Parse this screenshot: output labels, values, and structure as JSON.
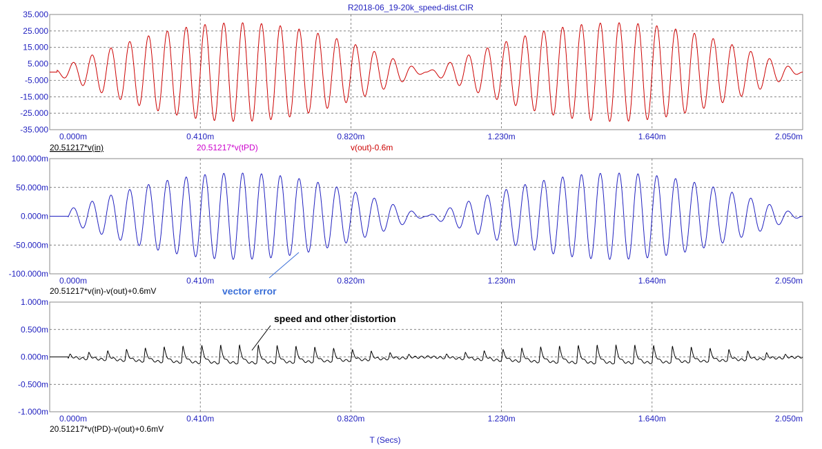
{
  "chart_data": {
    "type": "line",
    "title": "R2018-06_19-20k_speed-dist.CIR",
    "xlabel": "T (Secs)",
    "x_ticks": [
      "0.000m",
      "0.410m",
      "0.820m",
      "1.230m",
      "1.640m",
      "2.050m"
    ],
    "x_range_ms": [
      0,
      2.05
    ],
    "panels": [
      {
        "name": "top",
        "ylim": [
          -35,
          35
        ],
        "y_ticks": [
          "35.000",
          "25.000",
          "15.000",
          "5.000",
          "-5.000",
          "-15.000",
          "-25.000",
          "-35.000"
        ],
        "legend": [
          "20.51217*v(in)",
          "20.51217*v(tPD)",
          "v(out)-0.6m"
        ],
        "series": [
          {
            "name": "v(out)-0.6m",
            "color": "#cc0000",
            "amplitude": 30,
            "cycles": 40,
            "beat_cycles": 2,
            "start_ms": 0.02
          }
        ]
      },
      {
        "name": "middle",
        "ylim": [
          -100,
          100
        ],
        "y_ticks": [
          "100.000m",
          "50.000m",
          "0.000m",
          "-50.000m",
          "-100.000m"
        ],
        "legend": [
          "20.51217*v(in)-v(out)+0.6mV"
        ],
        "series": [
          {
            "name": "20.51217*v(in)-v(out)+0.6mV",
            "color": "#1f1fbf",
            "amplitude": 75,
            "cycles": 40,
            "beat_cycles": 2,
            "start_ms": 0.05
          }
        ],
        "annotation": {
          "text": "vector error",
          "color": "#3a6fd8"
        }
      },
      {
        "name": "bottom",
        "ylim": [
          -1,
          1
        ],
        "y_ticks": [
          "1.000m",
          "0.500m",
          "0.000m",
          "-0.500m",
          "-1.000m"
        ],
        "legend": [
          "20.51217*v(tPD)-v(out)+0.6mV"
        ],
        "series": [
          {
            "name": "20.51217*v(tPD)-v(out)+0.6mV",
            "color": "#000000",
            "amplitude": 0.2,
            "cycles": 40,
            "beat_cycles": 2,
            "start_ms": 0.05
          }
        ],
        "annotation": {
          "text": "speed and other distortion",
          "color": "#000000"
        }
      }
    ],
    "colors": {
      "axis_text": "#1f1fbf",
      "grid": "#555555",
      "frame": "#888888",
      "legend_1": "#000000",
      "legend_2": "#cc00cc",
      "legend_3": "#cc0000"
    }
  }
}
